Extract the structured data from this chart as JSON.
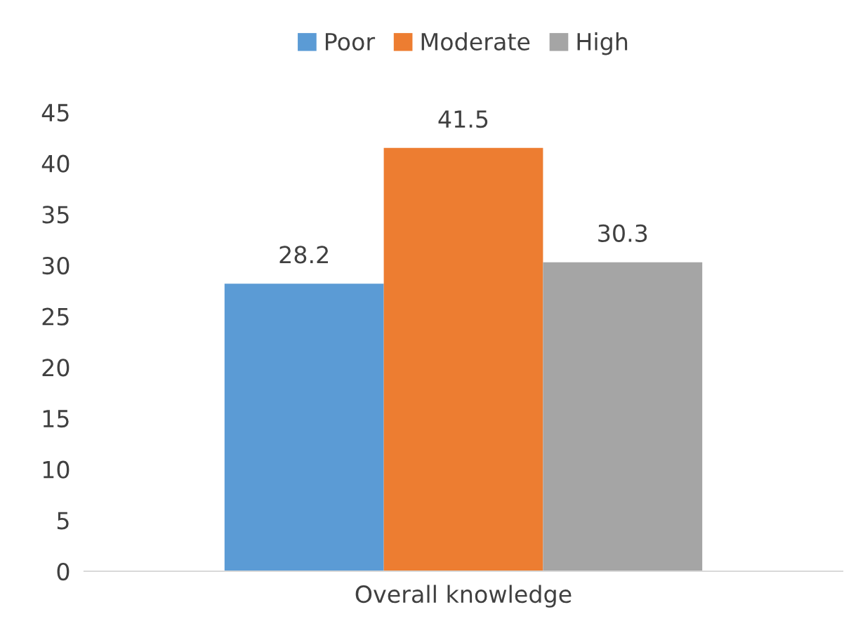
{
  "chart_data": {
    "type": "bar",
    "categories": [
      "Overall knowledge"
    ],
    "series": [
      {
        "name": "Poor",
        "color": "#5b9bd5",
        "values": [
          28.2
        ]
      },
      {
        "name": "Moderate",
        "color": "#ed7d31",
        "values": [
          41.5
        ]
      },
      {
        "name": "High",
        "color": "#a5a5a5",
        "values": [
          30.3
        ]
      }
    ],
    "ylim": [
      0,
      45
    ],
    "yticks": [
      0,
      5,
      10,
      15,
      20,
      25,
      30,
      35,
      40,
      45
    ],
    "grid": false,
    "legend": "top",
    "data_labels": true
  }
}
